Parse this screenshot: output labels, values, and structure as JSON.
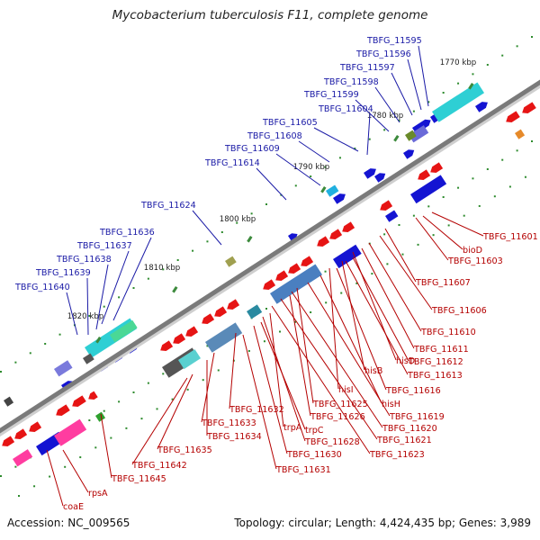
{
  "title": "Mycobacterium tuberculosis F11, complete genome",
  "accession": "Accession: NC_009565",
  "summary": "Topology: circular; Length: 4,424,435 bp; Genes: 3,989",
  "colors": {
    "forward_label": "#1a1aa6",
    "reverse_label": "#b40000",
    "forward_gene": "#1414d2",
    "reverse_gene": "#e61414",
    "backbone": "#888888",
    "gc_skew_pos": "#2a8a2a"
  },
  "ticks": [
    "1770 kbp",
    "1780 kbp",
    "1790 kbp",
    "1800 kbp",
    "1810 kbp",
    "1820 kbp"
  ],
  "forward_labels": [
    "TBFG_11595",
    "TBFG_11596",
    "TBFG_11597",
    "TBFG_11598",
    "TBFG_11599",
    "TBFG_11604",
    "TBFG_11605",
    "TBFG_11608",
    "TBFG_11609",
    "TBFG_11614",
    "TBFG_11624",
    "TBFG_11636",
    "TBFG_11637",
    "TBFG_11638",
    "TBFG_11639",
    "TBFG_11640"
  ],
  "reverse_labels": [
    "TBFG_11601",
    "bioD",
    "TBFG_11603",
    "TBFG_11607",
    "TBFG_11606",
    "TBFG_11610",
    "TBFG_11611",
    "hisD",
    "TBFG_11612",
    "hisB",
    "TBFG_11613",
    "hisI",
    "TBFG_11616",
    "hisH",
    "TBFG_11619",
    "TBFG_11625",
    "TBFG_11620",
    "TBFG_11626",
    "TBFG_11621",
    "TBFG_11632",
    "trpA",
    "TBFG_11628",
    "TBFG_11623",
    "trpC",
    "TBFG_11630",
    "TBFG_11633",
    "TBFG_11631",
    "TBFG_11634",
    "TBFG_11635",
    "TBFG_11642",
    "TBFG_11645",
    "rpsA",
    "coaE"
  ]
}
